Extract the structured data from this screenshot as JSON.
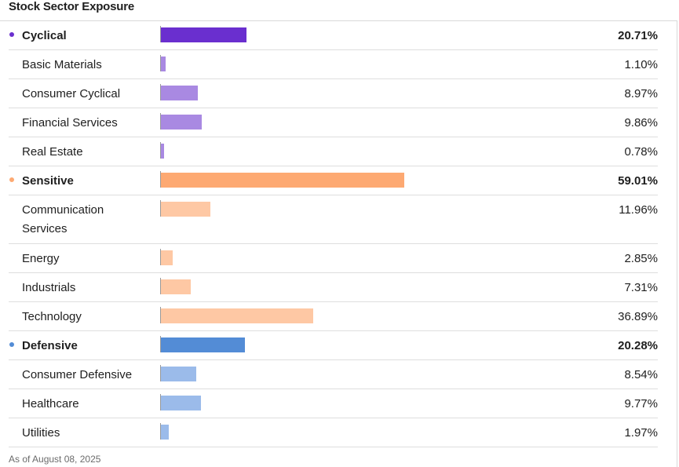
{
  "title": "Stock Sector Exposure",
  "footnote": "As of August 08, 2025",
  "chart_data": {
    "type": "bar",
    "orientation": "horizontal",
    "title": "Stock Sector Exposure",
    "unit": "%",
    "groups": [
      {
        "name": "Cyclical",
        "value": 20.71,
        "display": "20.71%",
        "color": "#6a2fcf",
        "sub_color": "#a989e2",
        "items": [
          {
            "name": "Basic Materials",
            "value": 1.1,
            "display": "1.10%"
          },
          {
            "name": "Consumer Cyclical",
            "value": 8.97,
            "display": "8.97%"
          },
          {
            "name": "Financial Services",
            "value": 9.86,
            "display": "9.86%"
          },
          {
            "name": "Real Estate",
            "value": 0.78,
            "display": "0.78%"
          }
        ]
      },
      {
        "name": "Sensitive",
        "value": 59.01,
        "display": "59.01%",
        "color": "#fda972",
        "sub_color": "#fec8a4",
        "items": [
          {
            "name": "Communication Services",
            "value": 11.96,
            "display": "11.96%"
          },
          {
            "name": "Energy",
            "value": 2.85,
            "display": "2.85%"
          },
          {
            "name": "Industrials",
            "value": 7.31,
            "display": "7.31%"
          },
          {
            "name": "Technology",
            "value": 36.89,
            "display": "36.89%"
          }
        ]
      },
      {
        "name": "Defensive",
        "value": 20.28,
        "display": "20.28%",
        "color": "#538cd6",
        "sub_color": "#9bbbea",
        "items": [
          {
            "name": "Consumer Defensive",
            "value": 8.54,
            "display": "8.54%"
          },
          {
            "name": "Healthcare",
            "value": 9.77,
            "display": "9.77%"
          },
          {
            "name": "Utilities",
            "value": 1.97,
            "display": "1.97%"
          }
        ]
      }
    ]
  }
}
